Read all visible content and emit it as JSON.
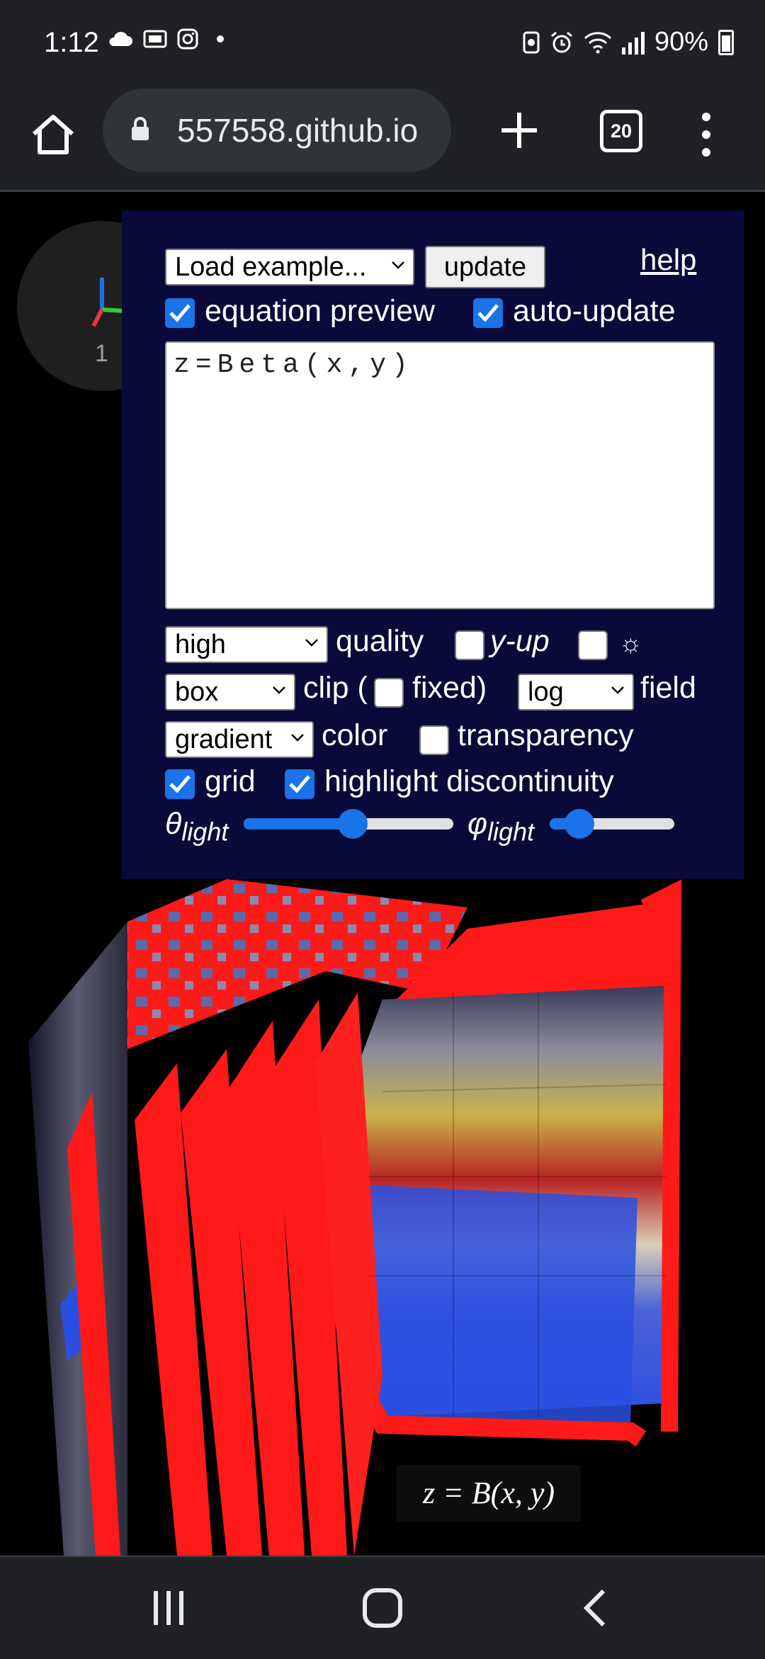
{
  "status_bar": {
    "time": "1:12",
    "battery_percent": "90%",
    "icons_left": [
      "cloud-icon",
      "notification-icon",
      "instagram-icon",
      "dot-icon"
    ],
    "icons_right": [
      "screenshot-icon",
      "alarm-icon",
      "wifi-icon",
      "signal-icon",
      "battery-icon"
    ]
  },
  "browser": {
    "url": "557558.github.io",
    "tab_count": "20"
  },
  "gizmo": {
    "label": "1"
  },
  "panel": {
    "example_select": "Load example...",
    "update_label": "update",
    "help_label": "help",
    "equation_preview": {
      "label": "equation preview",
      "checked": true
    },
    "auto_update": {
      "label": "auto-update",
      "checked": true
    },
    "equation_text": "z=Beta(x,y)",
    "quality_select": "high",
    "quality_label": "quality",
    "y_up": {
      "label": "y-up",
      "checked": false
    },
    "light_label": "☼",
    "clip_select": "box",
    "clip_label": "clip (",
    "fixed_label": "fixed)",
    "field_select": "log",
    "field_label": "field",
    "color_select": "gradient",
    "color_label": "color",
    "transparency": {
      "label": "transparency",
      "checked": false
    },
    "grid": {
      "label": "grid",
      "checked": true
    },
    "highlight_discontinuity": {
      "label": "highlight discontinuity",
      "checked": true
    },
    "theta_light": {
      "symbol": "θ",
      "subscript": "light",
      "value": 0.52
    },
    "phi_light": {
      "symbol": "φ",
      "subscript": "light",
      "value": 0.24
    }
  },
  "plot": {
    "caption": "z = B(x, y)"
  },
  "colors": {
    "panel_bg": "#0a0a3a",
    "accent": "#1a73e8",
    "discontinuity": "#ff1a1a",
    "surface_low": "#2a4fe0",
    "surface_high": "#c02020"
  }
}
